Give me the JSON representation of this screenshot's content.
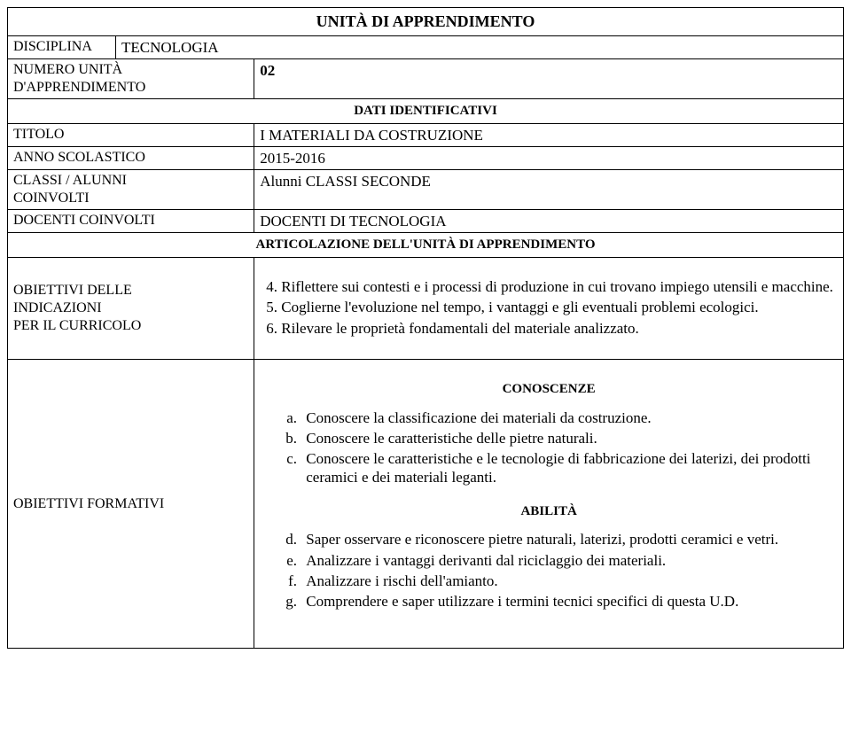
{
  "title": "UNITÀ DI APPRENDIMENTO",
  "rows": {
    "disciplina_label": "DISCIPLINA",
    "disciplina_value": "TECNOLOGIA",
    "numero_label": "NUMERO UNITÀ D'APPRENDIMENTO",
    "numero_value": "02",
    "dati_header": "DATI IDENTIFICATIVI",
    "titolo_label": "TITOLO",
    "titolo_value": "I  MATERIALI  DA COSTRUZIONE",
    "anno_label": "ANNO SCOLASTICO",
    "anno_value": "2015-2016",
    "classi_label_1": "CLASSI / ALUNNI",
    "classi_label_2": "COINVOLTI",
    "classi_value": "Alunni CLASSI SECONDE",
    "docenti_label": "DOCENTI COINVOLTI",
    "docenti_value": "DOCENTI DI TECNOLOGIA",
    "articolazione_header": "ARTICOLAZIONE DELL'UNITÀ DI APPRENDIMENTO",
    "obiettivi_ind_1": "OBIETTIVI DELLE",
    "obiettivi_ind_2": "INDICAZIONI",
    "obiettivi_ind_3": "PER IL CURRICOLO"
  },
  "objectives": {
    "start": 4,
    "items": [
      "Riflettere sui contesti e i processi di produzione in cui trovano impiego utensili e  macchine.",
      "Coglierne l'evoluzione nel tempo, i vantaggi e gli eventuali problemi ecologici.",
      "Rilevare le proprietà fondamentali del materiale analizzato."
    ]
  },
  "formativi_label": "OBIETTIVI FORMATIVI",
  "conoscenze_header": "CONOSCENZE",
  "conoscenze": [
    "Conoscere la classificazione dei materiali da costruzione.",
    "Conoscere le caratteristiche delle pietre naturali.",
    "Conoscere le caratteristiche e le tecnologie di fabbricazione dei laterizi, dei prodotti ceramici e dei materiali leganti."
  ],
  "abilita_header": "ABILITÀ",
  "abilita": [
    "Saper osservare e riconoscere pietre naturali, laterizi, prodotti ceramici e vetri.",
    "Analizzare i vantaggi derivanti dal riciclaggio dei materiali.",
    "Analizzare i rischi dell'amianto.",
    "Comprendere e saper utilizzare i termini tecnici specifici di questa U.D."
  ]
}
